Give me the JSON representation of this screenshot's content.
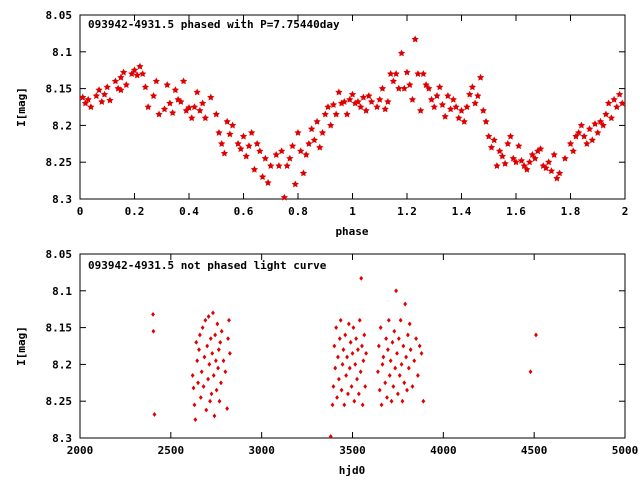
{
  "chart_data": [
    {
      "type": "scatter",
      "title": "093942-4931.5 phased with P=7.75440day",
      "xlabel": "phase",
      "ylabel": "I[mag]",
      "xlim": [
        0,
        2
      ],
      "ylim": [
        8.05,
        8.3
      ],
      "y_inverted": true,
      "grid": false,
      "marker": "filled-star",
      "color": "#e00000",
      "x_ticks": [
        "0",
        "0.2",
        "0.4",
        "0.6",
        "0.8",
        "1",
        "1.2",
        "1.4",
        "1.6",
        "1.8",
        "2"
      ],
      "y_ticks": [
        "8.05",
        "8.1",
        "8.15",
        "8.2",
        "8.25",
        "8.3"
      ],
      "points": [
        [
          0.01,
          8.162
        ],
        [
          0.02,
          8.17
        ],
        [
          0.03,
          8.165
        ],
        [
          0.04,
          8.175
        ],
        [
          0.06,
          8.16
        ],
        [
          0.07,
          8.152
        ],
        [
          0.08,
          8.168
        ],
        [
          0.09,
          8.158
        ],
        [
          0.1,
          8.148
        ],
        [
          0.11,
          8.166
        ],
        [
          0.13,
          8.14
        ],
        [
          0.14,
          8.15
        ],
        [
          0.15,
          8.135
        ],
        [
          0.15,
          8.152
        ],
        [
          0.16,
          8.128
        ],
        [
          0.17,
          8.145
        ],
        [
          0.19,
          8.13
        ],
        [
          0.2,
          8.125
        ],
        [
          0.21,
          8.132
        ],
        [
          0.22,
          8.12
        ],
        [
          0.23,
          8.13
        ],
        [
          0.24,
          8.148
        ],
        [
          0.25,
          8.175
        ],
        [
          0.27,
          8.16
        ],
        [
          0.28,
          8.14
        ],
        [
          0.29,
          8.185
        ],
        [
          0.31,
          8.178
        ],
        [
          0.32,
          8.145
        ],
        [
          0.33,
          8.17
        ],
        [
          0.34,
          8.183
        ],
        [
          0.35,
          8.152
        ],
        [
          0.36,
          8.165
        ],
        [
          0.37,
          8.168
        ],
        [
          0.38,
          8.14
        ],
        [
          0.39,
          8.18
        ],
        [
          0.4,
          8.176
        ],
        [
          0.41,
          8.19
        ],
        [
          0.42,
          8.175
        ],
        [
          0.43,
          8.155
        ],
        [
          0.44,
          8.18
        ],
        [
          0.45,
          8.17
        ],
        [
          0.46,
          8.19
        ],
        [
          0.48,
          8.162
        ],
        [
          0.5,
          8.185
        ],
        [
          0.51,
          8.21
        ],
        [
          0.52,
          8.225
        ],
        [
          0.53,
          8.238
        ],
        [
          0.54,
          8.195
        ],
        [
          0.55,
          8.212
        ],
        [
          0.56,
          8.2
        ],
        [
          0.58,
          8.225
        ],
        [
          0.59,
          8.232
        ],
        [
          0.6,
          8.215
        ],
        [
          0.61,
          8.242
        ],
        [
          0.62,
          8.228
        ],
        [
          0.63,
          8.21
        ],
        [
          0.64,
          8.26
        ],
        [
          0.65,
          8.225
        ],
        [
          0.66,
          8.235
        ],
        [
          0.67,
          8.27
        ],
        [
          0.68,
          8.245
        ],
        [
          0.69,
          8.278
        ],
        [
          0.7,
          8.255
        ],
        [
          0.72,
          8.24
        ],
        [
          0.73,
          8.255
        ],
        [
          0.74,
          8.235
        ],
        [
          0.75,
          8.298
        ],
        [
          0.76,
          8.255
        ],
        [
          0.77,
          8.245
        ],
        [
          0.78,
          8.228
        ],
        [
          0.79,
          8.28
        ],
        [
          0.8,
          8.21
        ],
        [
          0.81,
          8.235
        ],
        [
          0.82,
          8.265
        ],
        [
          0.83,
          8.24
        ],
        [
          0.84,
          8.225
        ],
        [
          0.85,
          8.205
        ],
        [
          0.86,
          8.22
        ],
        [
          0.87,
          8.195
        ],
        [
          0.88,
          8.23
        ],
        [
          0.89,
          8.21
        ],
        [
          0.9,
          8.185
        ],
        [
          0.91,
          8.175
        ],
        [
          0.92,
          8.2
        ],
        [
          0.93,
          8.172
        ],
        [
          0.94,
          8.185
        ],
        [
          0.95,
          8.155
        ],
        [
          0.96,
          8.17
        ],
        [
          0.97,
          8.168
        ],
        [
          0.98,
          8.185
        ],
        [
          0.99,
          8.165
        ],
        [
          1.0,
          8.158
        ],
        [
          1.01,
          8.17
        ],
        [
          1.02,
          8.168
        ],
        [
          1.03,
          8.175
        ],
        [
          1.04,
          8.162
        ],
        [
          1.05,
          8.18
        ],
        [
          1.06,
          8.16
        ],
        [
          1.07,
          8.168
        ],
        [
          1.09,
          8.175
        ],
        [
          1.1,
          8.165
        ],
        [
          1.11,
          8.15
        ],
        [
          1.12,
          8.178
        ],
        [
          1.13,
          8.168
        ],
        [
          1.14,
          8.13
        ],
        [
          1.15,
          8.14
        ],
        [
          1.16,
          8.13
        ],
        [
          1.17,
          8.15
        ],
        [
          1.18,
          8.102
        ],
        [
          1.19,
          8.15
        ],
        [
          1.2,
          8.128
        ],
        [
          1.21,
          8.145
        ],
        [
          1.22,
          8.165
        ],
        [
          1.23,
          8.083
        ],
        [
          1.24,
          8.13
        ],
        [
          1.25,
          8.18
        ],
        [
          1.26,
          8.13
        ],
        [
          1.27,
          8.145
        ],
        [
          1.28,
          8.15
        ],
        [
          1.29,
          8.165
        ],
        [
          1.3,
          8.175
        ],
        [
          1.31,
          8.16
        ],
        [
          1.32,
          8.148
        ],
        [
          1.33,
          8.172
        ],
        [
          1.34,
          8.188
        ],
        [
          1.35,
          8.16
        ],
        [
          1.36,
          8.178
        ],
        [
          1.37,
          8.165
        ],
        [
          1.38,
          8.175
        ],
        [
          1.39,
          8.19
        ],
        [
          1.4,
          8.18
        ],
        [
          1.41,
          8.195
        ],
        [
          1.42,
          8.175
        ],
        [
          1.43,
          8.158
        ],
        [
          1.44,
          8.148
        ],
        [
          1.45,
          8.17
        ],
        [
          1.46,
          8.16
        ],
        [
          1.47,
          8.135
        ],
        [
          1.48,
          8.18
        ],
        [
          1.49,
          8.195
        ],
        [
          1.5,
          8.215
        ],
        [
          1.51,
          8.23
        ],
        [
          1.52,
          8.22
        ],
        [
          1.53,
          8.255
        ],
        [
          1.54,
          8.235
        ],
        [
          1.55,
          8.242
        ],
        [
          1.56,
          8.252
        ],
        [
          1.57,
          8.225
        ],
        [
          1.58,
          8.215
        ],
        [
          1.59,
          8.245
        ],
        [
          1.6,
          8.25
        ],
        [
          1.61,
          8.228
        ],
        [
          1.62,
          8.248
        ],
        [
          1.63,
          8.255
        ],
        [
          1.64,
          8.26
        ],
        [
          1.65,
          8.25
        ],
        [
          1.66,
          8.24
        ],
        [
          1.67,
          8.245
        ],
        [
          1.68,
          8.235
        ],
        [
          1.69,
          8.232
        ],
        [
          1.7,
          8.255
        ],
        [
          1.71,
          8.258
        ],
        [
          1.72,
          8.25
        ],
        [
          1.73,
          8.262
        ],
        [
          1.74,
          8.24
        ],
        [
          1.75,
          8.272
        ],
        [
          1.76,
          8.265
        ],
        [
          1.78,
          8.245
        ],
        [
          1.8,
          8.225
        ],
        [
          1.81,
          8.235
        ],
        [
          1.82,
          8.215
        ],
        [
          1.83,
          8.21
        ],
        [
          1.84,
          8.2
        ],
        [
          1.85,
          8.215
        ],
        [
          1.86,
          8.225
        ],
        [
          1.87,
          8.205
        ],
        [
          1.88,
          8.22
        ],
        [
          1.89,
          8.198
        ],
        [
          1.9,
          8.21
        ],
        [
          1.91,
          8.195
        ],
        [
          1.92,
          8.2
        ],
        [
          1.93,
          8.185
        ],
        [
          1.94,
          8.17
        ],
        [
          1.95,
          8.19
        ],
        [
          1.96,
          8.165
        ],
        [
          1.97,
          8.175
        ],
        [
          1.98,
          8.158
        ],
        [
          1.99,
          8.17
        ]
      ]
    },
    {
      "type": "scatter",
      "title": "093942-4931.5 not phased light curve",
      "xlabel": "hjd0",
      "ylabel": "I[mag]",
      "xlim": [
        2000,
        5000
      ],
      "ylim": [
        8.05,
        8.3
      ],
      "y_inverted": true,
      "grid": false,
      "marker": "diamond",
      "color": "#e00000",
      "x_ticks": [
        "2000",
        "2500",
        "3000",
        "3500",
        "4000",
        "4500",
        "5000"
      ],
      "y_ticks": [
        "8.05",
        "8.1",
        "8.15",
        "8.2",
        "8.25",
        "8.3"
      ],
      "points": [
        [
          2402,
          8.132
        ],
        [
          2404,
          8.155
        ],
        [
          2410,
          8.268
        ],
        [
          2620,
          8.215
        ],
        [
          2625,
          8.232
        ],
        [
          2630,
          8.255
        ],
        [
          2635,
          8.275
        ],
        [
          2640,
          8.17
        ],
        [
          2645,
          8.195
        ],
        [
          2650,
          8.225
        ],
        [
          2655,
          8.18
        ],
        [
          2660,
          8.16
        ],
        [
          2665,
          8.245
        ],
        [
          2670,
          8.21
        ],
        [
          2675,
          8.15
        ],
        [
          2680,
          8.23
        ],
        [
          2685,
          8.19
        ],
        [
          2690,
          8.14
        ],
        [
          2695,
          8.262
        ],
        [
          2700,
          8.175
        ],
        [
          2705,
          8.22
        ],
        [
          2708,
          8.135
        ],
        [
          2712,
          8.2
        ],
        [
          2716,
          8.25
        ],
        [
          2720,
          8.165
        ],
        [
          2724,
          8.24
        ],
        [
          2728,
          8.185
        ],
        [
          2732,
          8.13
        ],
        [
          2736,
          8.215
        ],
        [
          2740,
          8.27
        ],
        [
          2744,
          8.16
        ],
        [
          2748,
          8.195
        ],
        [
          2752,
          8.235
        ],
        [
          2756,
          8.145
        ],
        [
          2760,
          8.205
        ],
        [
          2764,
          8.18
        ],
        [
          2768,
          8.25
        ],
        [
          2772,
          8.17
        ],
        [
          2776,
          8.225
        ],
        [
          2780,
          8.155
        ],
        [
          2790,
          8.195
        ],
        [
          2800,
          8.21
        ],
        [
          2810,
          8.26
        ],
        [
          2815,
          8.165
        ],
        [
          2820,
          8.14
        ],
        [
          2825,
          8.185
        ],
        [
          3380,
          8.298
        ],
        [
          3390,
          8.255
        ],
        [
          3395,
          8.23
        ],
        [
          3400,
          8.175
        ],
        [
          3405,
          8.205
        ],
        [
          3410,
          8.15
        ],
        [
          3415,
          8.245
        ],
        [
          3420,
          8.19
        ],
        [
          3425,
          8.22
        ],
        [
          3430,
          8.165
        ],
        [
          3435,
          8.14
        ],
        [
          3440,
          8.235
        ],
        [
          3445,
          8.2
        ],
        [
          3450,
          8.18
        ],
        [
          3455,
          8.255
        ],
        [
          3460,
          8.16
        ],
        [
          3465,
          8.215
        ],
        [
          3470,
          8.19
        ],
        [
          3475,
          8.24
        ],
        [
          3480,
          8.145
        ],
        [
          3485,
          8.205
        ],
        [
          3490,
          8.17
        ],
        [
          3495,
          8.23
        ],
        [
          3500,
          8.185
        ],
        [
          3505,
          8.15
        ],
        [
          3510,
          8.25
        ],
        [
          3515,
          8.2
        ],
        [
          3520,
          8.165
        ],
        [
          3525,
          8.22
        ],
        [
          3530,
          8.18
        ],
        [
          3535,
          8.24
        ],
        [
          3540,
          8.14
        ],
        [
          3545,
          8.21
        ],
        [
          3548,
          8.083
        ],
        [
          3552,
          8.175
        ],
        [
          3556,
          8.255
        ],
        [
          3560,
          8.195
        ],
        [
          3565,
          8.16
        ],
        [
          3570,
          8.23
        ],
        [
          3575,
          8.185
        ],
        [
          3640,
          8.21
        ],
        [
          3645,
          8.175
        ],
        [
          3650,
          8.235
        ],
        [
          3655,
          8.15
        ],
        [
          3660,
          8.255
        ],
        [
          3665,
          8.2
        ],
        [
          3670,
          8.19
        ],
        [
          3680,
          8.225
        ],
        [
          3685,
          8.165
        ],
        [
          3690,
          8.245
        ],
        [
          3695,
          8.18
        ],
        [
          3700,
          8.14
        ],
        [
          3705,
          8.215
        ],
        [
          3710,
          8.195
        ],
        [
          3715,
          8.25
        ],
        [
          3720,
          8.17
        ],
        [
          3725,
          8.23
        ],
        [
          3730,
          8.155
        ],
        [
          3735,
          8.205
        ],
        [
          3740,
          8.1
        ],
        [
          3745,
          8.185
        ],
        [
          3750,
          8.24
        ],
        [
          3755,
          8.165
        ],
        [
          3760,
          8.215
        ],
        [
          3765,
          8.14
        ],
        [
          3770,
          8.2
        ],
        [
          3775,
          8.25
        ],
        [
          3780,
          8.175
        ],
        [
          3785,
          8.225
        ],
        [
          3790,
          8.118
        ],
        [
          3795,
          8.19
        ],
        [
          3800,
          8.235
        ],
        [
          3805,
          8.16
        ],
        [
          3810,
          8.205
        ],
        [
          3815,
          8.145
        ],
        [
          3820,
          8.18
        ],
        [
          3830,
          8.23
        ],
        [
          3840,
          8.195
        ],
        [
          3850,
          8.165
        ],
        [
          3860,
          8.215
        ],
        [
          3870,
          8.175
        ],
        [
          3880,
          8.185
        ],
        [
          3890,
          8.25
        ],
        [
          4480,
          8.21
        ],
        [
          4510,
          8.16
        ]
      ]
    }
  ]
}
